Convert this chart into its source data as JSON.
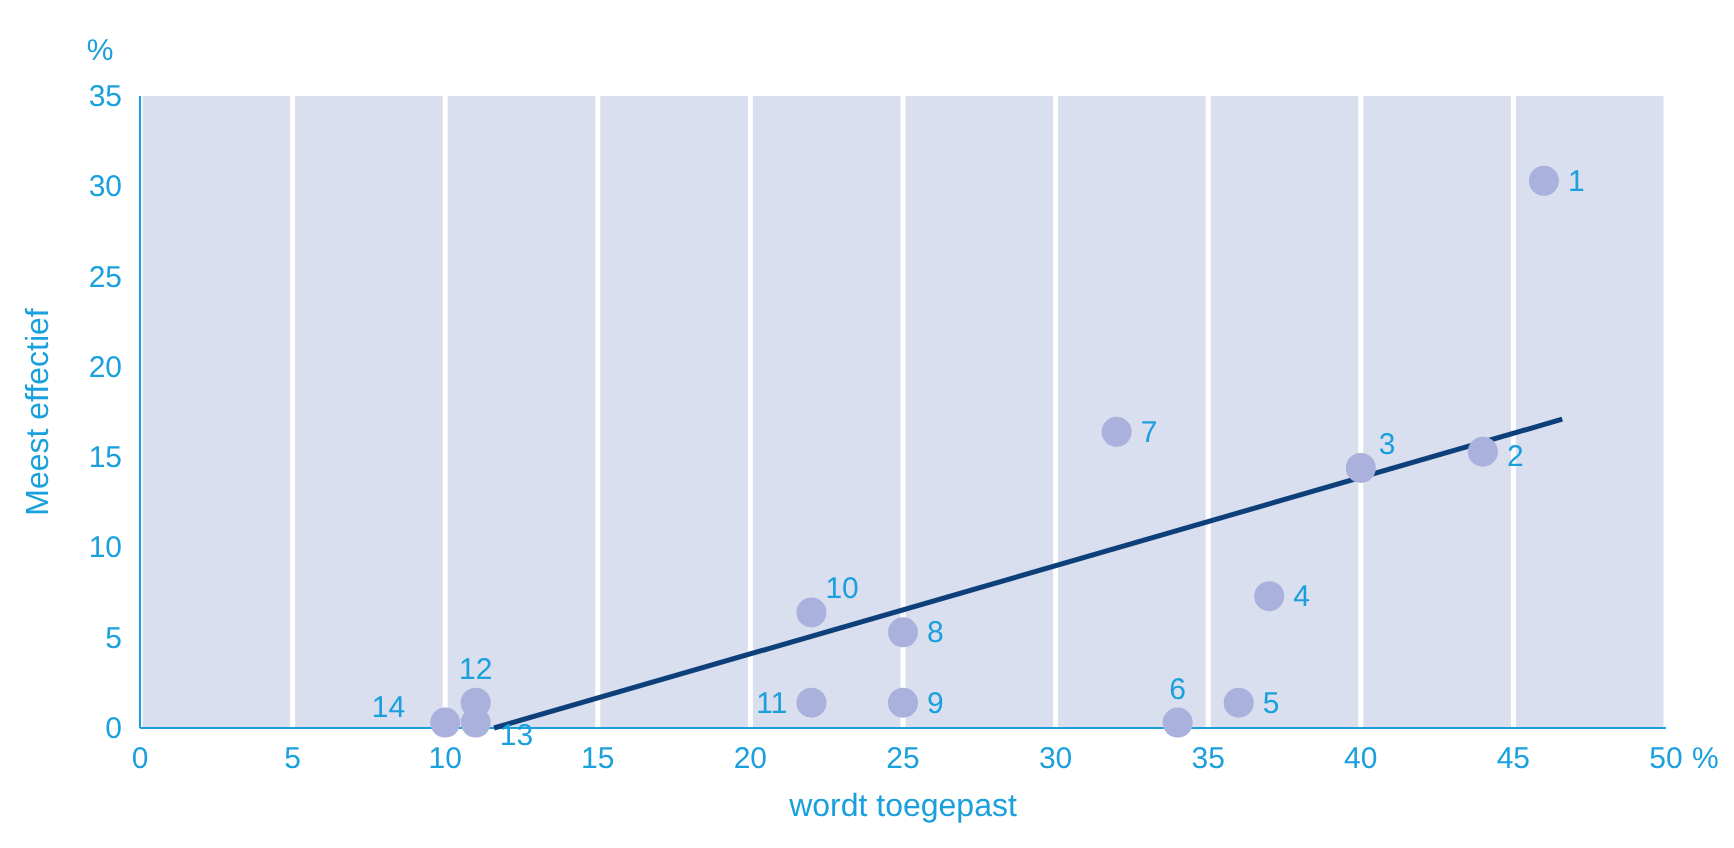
{
  "chart_data": {
    "type": "scatter",
    "xlabel": "wordt toegepast",
    "ylabel": "Meest effectief",
    "xlim": [
      0,
      50
    ],
    "xticks": [
      0,
      5,
      10,
      15,
      20,
      25,
      30,
      35,
      40,
      45,
      50
    ],
    "ylim": [
      0,
      35
    ],
    "yticks": [
      0,
      5,
      10,
      15,
      20,
      25,
      30,
      35
    ],
    "grid": "x",
    "series": [
      {
        "color": "#a9b1dc",
        "marker": "circle",
        "x": [
          46,
          44,
          40,
          37,
          36,
          34,
          32,
          25,
          25,
          22,
          22,
          11,
          11,
          10
        ],
        "values": [
          30.3,
          15.3,
          14.4,
          7.3,
          1.4,
          0.3,
          16.4,
          5.3,
          1.4,
          6.4,
          1.4,
          1.4,
          0.3,
          0.3
        ]
      },
      {
        "type": "line",
        "color": "#0d3f7a",
        "x": [
          11.6,
          46.6
        ],
        "values": [
          0,
          17.1
        ]
      }
    ],
    "annotations": [
      "%",
      "%",
      {
        "text": "1",
        "x": 46,
        "y": 30.3
      },
      {
        "text": "2",
        "x": 44,
        "y": 15.3
      },
      {
        "text": "3",
        "x": 40,
        "y": 14.4
      },
      {
        "text": "4",
        "x": 37,
        "y": 7.3
      },
      {
        "text": "5",
        "x": 36,
        "y": 1.4
      },
      {
        "text": "6",
        "x": 34,
        "y": 0.3
      },
      {
        "text": "7",
        "x": 32,
        "y": 16.4
      },
      {
        "text": "8",
        "x": 25,
        "y": 5.3
      },
      {
        "text": "9",
        "x": 25,
        "y": 1.4
      },
      {
        "text": "10",
        "x": 22,
        "y": 6.4
      },
      {
        "text": "11",
        "x": 22,
        "y": 1.4
      },
      {
        "text": "12",
        "x": 11,
        "y": 1.4
      },
      {
        "text": "13",
        "x": 11,
        "y": 0.3
      },
      {
        "text": "14",
        "x": 10,
        "y": 0.3
      }
    ]
  }
}
